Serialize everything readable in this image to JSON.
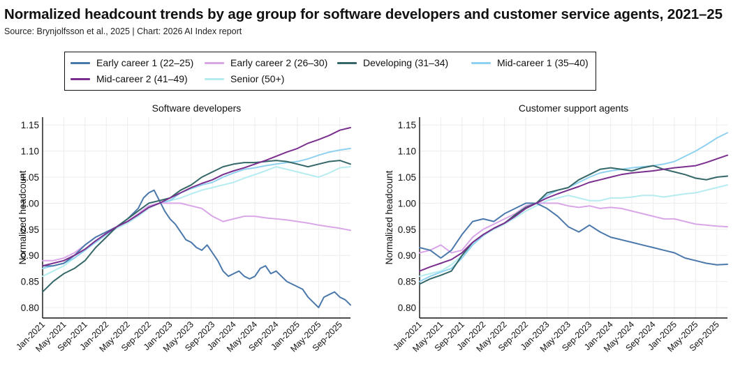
{
  "header": {
    "title": "Normalized headcount trends by age group for software developers and customer service agents, 2021–25",
    "source": "Source: Brynjolfsson et al., 2025 | Chart: 2026 AI Index report"
  },
  "legend": [
    {
      "name": "Early career 1 (22–25)",
      "color": "#4a78aa"
    },
    {
      "name": "Early career 2 (26–30)",
      "color": "#d9a6e8"
    },
    {
      "name": "Developing (31–34)",
      "color": "#356768"
    },
    {
      "name": "Mid-career 1 (35–40)",
      "color": "#8fd1f0"
    },
    {
      "name": "Mid-career 2 (41–49)",
      "color": "#7a2f8e"
    },
    {
      "name": "Senior (50+)",
      "color": "#b4ecef"
    }
  ],
  "chart_data": [
    {
      "type": "line",
      "title": "Software developers",
      "xlabel": "",
      "ylabel": "Normalized headcount",
      "ylim": [
        0.78,
        1.165
      ],
      "yticks": [
        0.8,
        0.85,
        0.9,
        0.95,
        1.0,
        1.05,
        1.1,
        1.15
      ],
      "ytick_labels": [
        "0.80",
        "0.85",
        "0.90",
        "0.95",
        "1.00",
        "1.05",
        "1.10",
        "1.15"
      ],
      "x_tick_labels": [
        "Jan-2021",
        "May-2021",
        "Sep-2021",
        "Jan-2022",
        "May-2022",
        "Sep-2022",
        "Jan-2023",
        "May-2023",
        "Sep-2023",
        "Jan-2024",
        "May-2024",
        "Sep-2024",
        "Jan-2025",
        "May-2025",
        "Sep-2025"
      ],
      "x_tick_months": [
        0,
        4,
        8,
        12,
        16,
        20,
        24,
        28,
        32,
        36,
        40,
        44,
        48,
        52,
        56
      ],
      "x_range_months": [
        0,
        58
      ],
      "grid": true,
      "series": [
        {
          "name": "Early career 1 (22–25)",
          "x": [
            0,
            2,
            4,
            6,
            8,
            10,
            12,
            14,
            16,
            18,
            19,
            20,
            21,
            22,
            23,
            24,
            25,
            26,
            27,
            28,
            29,
            30,
            31,
            32,
            33,
            34,
            35,
            36,
            37,
            38,
            39,
            40,
            41,
            42,
            43,
            44,
            45,
            46,
            47,
            48,
            49,
            50,
            51,
            52,
            53,
            54,
            55,
            56,
            57,
            58
          ],
          "y": [
            0.88,
            0.88,
            0.885,
            0.9,
            0.92,
            0.935,
            0.945,
            0.955,
            0.97,
            0.99,
            1.01,
            1.02,
            1.025,
            1.005,
            0.985,
            0.97,
            0.96,
            0.945,
            0.93,
            0.925,
            0.915,
            0.91,
            0.92,
            0.905,
            0.89,
            0.87,
            0.86,
            0.865,
            0.87,
            0.86,
            0.855,
            0.86,
            0.875,
            0.88,
            0.865,
            0.87,
            0.86,
            0.85,
            0.845,
            0.84,
            0.835,
            0.82,
            0.81,
            0.8,
            0.82,
            0.825,
            0.83,
            0.82,
            0.815,
            0.805
          ]
        },
        {
          "name": "Early career 2 (26–30)",
          "x": [
            0,
            2,
            4,
            6,
            8,
            10,
            12,
            14,
            16,
            18,
            20,
            22,
            24,
            26,
            28,
            30,
            32,
            34,
            36,
            38,
            40,
            42,
            44,
            46,
            48,
            50,
            52,
            54,
            56,
            58
          ],
          "y": [
            0.89,
            0.89,
            0.895,
            0.905,
            0.92,
            0.935,
            0.945,
            0.955,
            0.965,
            0.98,
            0.995,
            1.0,
            1.0,
            1.0,
            0.995,
            0.99,
            0.975,
            0.965,
            0.97,
            0.975,
            0.975,
            0.972,
            0.97,
            0.968,
            0.965,
            0.962,
            0.958,
            0.955,
            0.952,
            0.948
          ]
        },
        {
          "name": "Developing (31–34)",
          "x": [
            0,
            2,
            4,
            6,
            8,
            10,
            12,
            14,
            16,
            18,
            20,
            22,
            24,
            26,
            28,
            30,
            32,
            34,
            36,
            38,
            40,
            42,
            44,
            46,
            48,
            50,
            52,
            54,
            56,
            58
          ],
          "y": [
            0.83,
            0.85,
            0.865,
            0.875,
            0.89,
            0.915,
            0.935,
            0.955,
            0.97,
            0.985,
            1.0,
            1.005,
            1.01,
            1.025,
            1.035,
            1.05,
            1.06,
            1.07,
            1.075,
            1.078,
            1.078,
            1.08,
            1.082,
            1.08,
            1.075,
            1.07,
            1.075,
            1.08,
            1.082,
            1.075
          ]
        },
        {
          "name": "Mid-career 1 (35–40)",
          "x": [
            0,
            2,
            4,
            6,
            8,
            10,
            12,
            14,
            16,
            18,
            20,
            22,
            24,
            26,
            28,
            30,
            32,
            34,
            36,
            38,
            40,
            42,
            44,
            46,
            48,
            50,
            52,
            54,
            56,
            58
          ],
          "y": [
            0.875,
            0.88,
            0.885,
            0.895,
            0.91,
            0.925,
            0.94,
            0.955,
            0.965,
            0.98,
            0.995,
            1.0,
            1.005,
            1.02,
            1.028,
            1.035,
            1.04,
            1.05,
            1.058,
            1.065,
            1.068,
            1.072,
            1.075,
            1.078,
            1.08,
            1.085,
            1.092,
            1.098,
            1.102,
            1.105
          ]
        },
        {
          "name": "Mid-career 2 (41–49)",
          "x": [
            0,
            2,
            4,
            6,
            8,
            10,
            12,
            14,
            16,
            18,
            20,
            22,
            24,
            26,
            28,
            30,
            32,
            34,
            36,
            38,
            40,
            42,
            44,
            46,
            48,
            50,
            52,
            54,
            56,
            58
          ],
          "y": [
            0.88,
            0.885,
            0.89,
            0.9,
            0.912,
            0.928,
            0.942,
            0.955,
            0.965,
            0.978,
            0.992,
            1.0,
            1.01,
            1.02,
            1.03,
            1.038,
            1.045,
            1.055,
            1.062,
            1.068,
            1.075,
            1.082,
            1.09,
            1.098,
            1.105,
            1.115,
            1.122,
            1.13,
            1.14,
            1.145
          ]
        },
        {
          "name": "Senior (50+)",
          "x": [
            0,
            2,
            4,
            6,
            8,
            10,
            12,
            14,
            16,
            18,
            20,
            22,
            24,
            26,
            28,
            30,
            32,
            34,
            36,
            38,
            40,
            42,
            44,
            46,
            48,
            50,
            52,
            54,
            56,
            58
          ],
          "y": [
            0.86,
            0.87,
            0.88,
            0.895,
            0.91,
            0.925,
            0.94,
            0.952,
            0.962,
            0.975,
            0.99,
            1.0,
            1.005,
            1.01,
            1.018,
            1.025,
            1.03,
            1.035,
            1.04,
            1.048,
            1.055,
            1.062,
            1.07,
            1.065,
            1.06,
            1.055,
            1.05,
            1.058,
            1.068,
            1.07
          ]
        }
      ]
    },
    {
      "type": "line",
      "title": "Customer support agents",
      "xlabel": "",
      "ylabel": "Normalized headcount",
      "ylim": [
        0.78,
        1.165
      ],
      "yticks": [
        0.8,
        0.85,
        0.9,
        0.95,
        1.0,
        1.05,
        1.1,
        1.15
      ],
      "ytick_labels": [
        "0.80",
        "0.85",
        "0.90",
        "0.95",
        "1.00",
        "1.05",
        "1.10",
        "1.15"
      ],
      "x_tick_labels": [
        "Jan-2021",
        "May-2021",
        "Sep-2021",
        "Jan-2022",
        "May-2022",
        "Sep-2022",
        "Jan-2023",
        "May-2023",
        "Sep-2023",
        "Jan-2024",
        "May-2024",
        "Sep-2024",
        "Jan-2025",
        "May-2025",
        "Sep-2025"
      ],
      "x_tick_months": [
        0,
        4,
        8,
        12,
        16,
        20,
        24,
        28,
        32,
        36,
        40,
        44,
        48,
        52,
        56
      ],
      "x_range_months": [
        0,
        58
      ],
      "grid": true,
      "series": [
        {
          "name": "Early career 1 (22–25)",
          "x": [
            0,
            2,
            4,
            6,
            8,
            10,
            12,
            14,
            16,
            18,
            20,
            22,
            24,
            26,
            28,
            30,
            32,
            34,
            36,
            38,
            40,
            42,
            44,
            46,
            48,
            50,
            52,
            54,
            56,
            58
          ],
          "y": [
            0.915,
            0.91,
            0.895,
            0.91,
            0.94,
            0.965,
            0.97,
            0.965,
            0.98,
            0.99,
            1.0,
            1.0,
            0.99,
            0.975,
            0.955,
            0.945,
            0.958,
            0.945,
            0.935,
            0.93,
            0.925,
            0.92,
            0.915,
            0.91,
            0.905,
            0.895,
            0.89,
            0.885,
            0.882,
            0.883
          ]
        },
        {
          "name": "Early career 2 (26–30)",
          "x": [
            0,
            2,
            4,
            6,
            8,
            10,
            12,
            14,
            16,
            18,
            20,
            22,
            24,
            26,
            28,
            30,
            32,
            34,
            36,
            38,
            40,
            42,
            44,
            46,
            48,
            50,
            52,
            54,
            56,
            58
          ],
          "y": [
            0.905,
            0.91,
            0.92,
            0.905,
            0.91,
            0.935,
            0.95,
            0.96,
            0.97,
            0.98,
            0.995,
            1.0,
            1.0,
            1.0,
            0.995,
            0.992,
            0.995,
            0.99,
            0.992,
            0.99,
            0.985,
            0.98,
            0.975,
            0.97,
            0.97,
            0.965,
            0.96,
            0.958,
            0.956,
            0.955
          ]
        },
        {
          "name": "Developing (31–34)",
          "x": [
            0,
            2,
            4,
            6,
            8,
            10,
            12,
            14,
            16,
            18,
            20,
            22,
            24,
            26,
            28,
            30,
            32,
            34,
            36,
            38,
            40,
            42,
            44,
            46,
            48,
            50,
            52,
            54,
            56,
            58
          ],
          "y": [
            0.845,
            0.855,
            0.862,
            0.87,
            0.9,
            0.925,
            0.94,
            0.952,
            0.962,
            0.978,
            0.992,
            1.0,
            1.02,
            1.025,
            1.03,
            1.045,
            1.055,
            1.065,
            1.068,
            1.065,
            1.062,
            1.068,
            1.072,
            1.065,
            1.06,
            1.055,
            1.048,
            1.045,
            1.05,
            1.052
          ]
        },
        {
          "name": "Mid-career 1 (35–40)",
          "x": [
            0,
            2,
            4,
            6,
            8,
            10,
            12,
            14,
            16,
            18,
            20,
            22,
            24,
            26,
            28,
            30,
            32,
            34,
            36,
            38,
            40,
            42,
            44,
            46,
            48,
            50,
            52,
            54,
            56,
            58
          ],
          "y": [
            0.85,
            0.86,
            0.868,
            0.875,
            0.895,
            0.92,
            0.938,
            0.952,
            0.962,
            0.975,
            0.99,
            1.0,
            1.015,
            1.025,
            1.03,
            1.04,
            1.05,
            1.058,
            1.062,
            1.065,
            1.068,
            1.07,
            1.072,
            1.075,
            1.08,
            1.09,
            1.1,
            1.112,
            1.125,
            1.135
          ]
        },
        {
          "name": "Mid-career 2 (41–49)",
          "x": [
            0,
            2,
            4,
            6,
            8,
            10,
            12,
            14,
            16,
            18,
            20,
            22,
            24,
            26,
            28,
            30,
            32,
            34,
            36,
            38,
            40,
            42,
            44,
            46,
            48,
            50,
            52,
            54,
            56,
            58
          ],
          "y": [
            0.87,
            0.878,
            0.885,
            0.892,
            0.905,
            0.925,
            0.94,
            0.952,
            0.962,
            0.975,
            0.99,
            1.0,
            1.01,
            1.018,
            1.025,
            1.032,
            1.04,
            1.045,
            1.05,
            1.055,
            1.058,
            1.06,
            1.062,
            1.065,
            1.068,
            1.07,
            1.072,
            1.078,
            1.085,
            1.092
          ]
        },
        {
          "name": "Senior (50+)",
          "x": [
            0,
            2,
            4,
            6,
            8,
            10,
            12,
            14,
            16,
            18,
            20,
            22,
            24,
            26,
            28,
            30,
            32,
            34,
            36,
            38,
            40,
            42,
            44,
            46,
            48,
            50,
            52,
            54,
            56,
            58
          ],
          "y": [
            0.86,
            0.865,
            0.87,
            0.882,
            0.9,
            0.922,
            0.938,
            0.95,
            0.96,
            0.972,
            0.985,
            0.995,
            1.005,
            1.01,
            1.015,
            1.01,
            1.005,
            1.005,
            1.01,
            1.01,
            1.012,
            1.015,
            1.015,
            1.012,
            1.015,
            1.018,
            1.02,
            1.025,
            1.03,
            1.035
          ]
        }
      ]
    }
  ]
}
